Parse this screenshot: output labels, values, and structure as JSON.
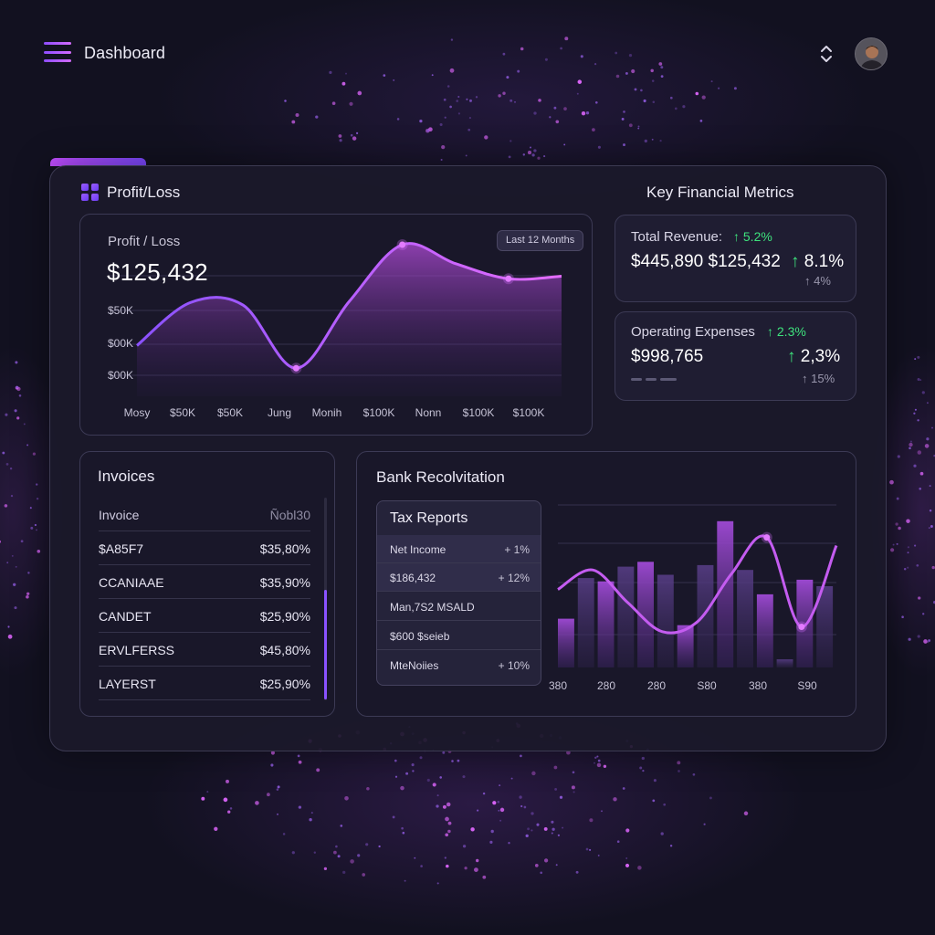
{
  "header": {
    "title": "Dashboard"
  },
  "profit_loss": {
    "section_title": "Profit/Loss",
    "card_label": "Profit / Loss",
    "value": "$125,432",
    "range_label": "Last 12 Months",
    "y_ticks": [
      "$50K",
      "$00K",
      "$00K"
    ],
    "x_ticks": [
      "Mosy",
      "$50K",
      "$50K",
      "Jung",
      "Monih",
      "$100K",
      "Nonn",
      "$100K",
      "$100K"
    ]
  },
  "metrics": {
    "section_title": "Key Financial Metrics",
    "revenue": {
      "label": "Total Revenue:",
      "label_change": "5.2%",
      "value": "$445,890 $125,432",
      "change": "8.1%",
      "sub_change": "4%"
    },
    "expenses": {
      "label": "Operating Expenses",
      "label_change": "2.3%",
      "value": "$998,765",
      "change": "2,3%",
      "sub_change": "15%"
    }
  },
  "invoices": {
    "title": "Invoices",
    "header": {
      "col1": "Invoice",
      "col2": "Ñobl30"
    },
    "rows": [
      {
        "name": "$A85F7",
        "amount": "$35,80%"
      },
      {
        "name": "CCANIAAE",
        "amount": "$35,90%"
      },
      {
        "name": "CANDET",
        "amount": "$25,90%"
      },
      {
        "name": "ERVLFERSS",
        "amount": "$45,80%"
      },
      {
        "name": "LAYERST",
        "amount": "$25,90%"
      }
    ]
  },
  "bank": {
    "title": "Bank Recolvitation",
    "tax": {
      "title": "Tax Reports",
      "rows": [
        {
          "label": "Net Income",
          "value": "+ 1%"
        },
        {
          "label": "$186,432",
          "value": "+ 12%"
        },
        {
          "label": "Man,7S2 MSALD",
          "value": ""
        },
        {
          "label": "$600 $seieb",
          "value": ""
        },
        {
          "label": "MteNoiies",
          "value": "+ 10%"
        }
      ]
    },
    "x_ticks": [
      "380",
      "280",
      "280",
      "S80",
      "380",
      "S90"
    ]
  },
  "chart_data": [
    {
      "type": "area",
      "title": "Profit / Loss",
      "x": [
        "Mosy",
        "$50K",
        "$50K",
        "Jung",
        "Monih",
        "$100K",
        "Nonn",
        "$100K",
        "$100K"
      ],
      "y_tick_labels": [
        "$50K",
        "$00K",
        "$00K"
      ],
      "series": [
        {
          "values": [
            0.2,
            0.54,
            0.52,
            0.02,
            0.55,
            1.0,
            0.85,
            0.73,
            0.75
          ]
        }
      ],
      "grid": true
    },
    {
      "type": "bar",
      "x_tick_labels": [
        "380",
        "280",
        "280",
        "S80",
        "380",
        "S90"
      ],
      "bars": [
        0.3,
        0.55,
        0.53,
        0.62,
        0.65,
        0.57,
        0.26,
        0.63,
        0.9,
        0.6,
        0.45,
        0.05,
        0.54,
        0.5
      ],
      "line": [
        0.48,
        0.6,
        0.4,
        0.22,
        0.28,
        0.58,
        0.8,
        0.25,
        0.75
      ],
      "grid": true
    }
  ]
}
